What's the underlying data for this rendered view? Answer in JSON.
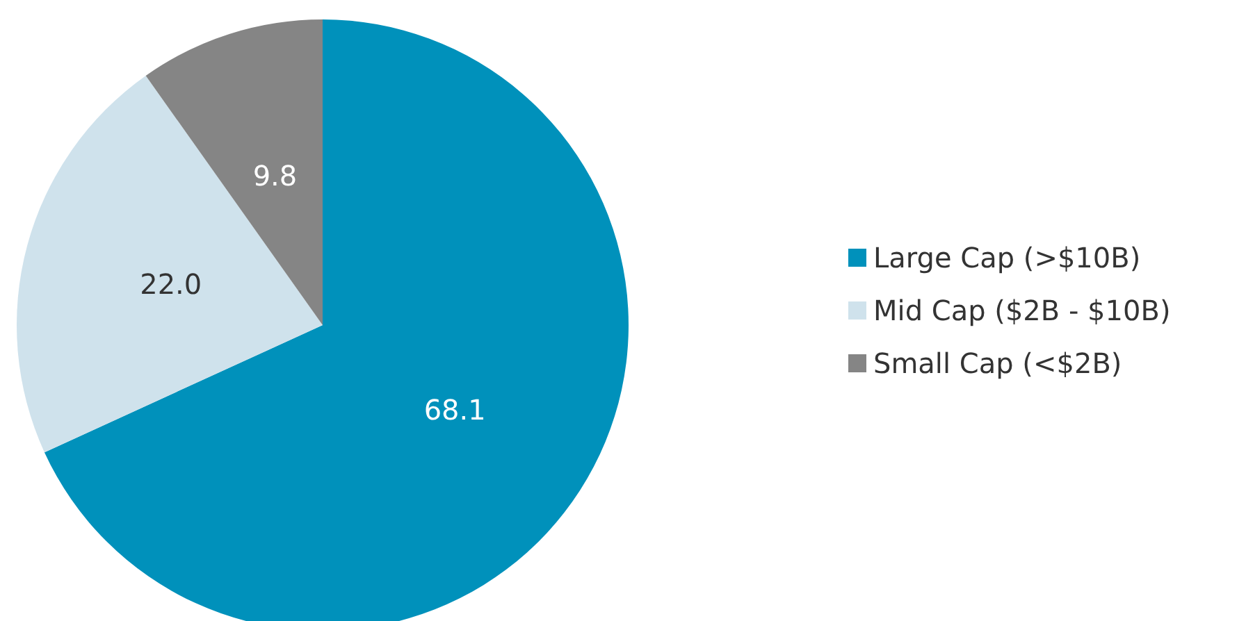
{
  "chart_data": {
    "type": "pie",
    "categories": [
      "Large Cap (>$10B)",
      "Mid Cap ($2B - $10B)",
      "Small Cap (<$2B)"
    ],
    "values": [
      68.1,
      22.0,
      9.8
    ],
    "value_labels": [
      "68.1",
      "22.0",
      "9.8"
    ],
    "colors": [
      "#0091bb",
      "#cfe2ec",
      "#858585"
    ],
    "legend": "right"
  }
}
